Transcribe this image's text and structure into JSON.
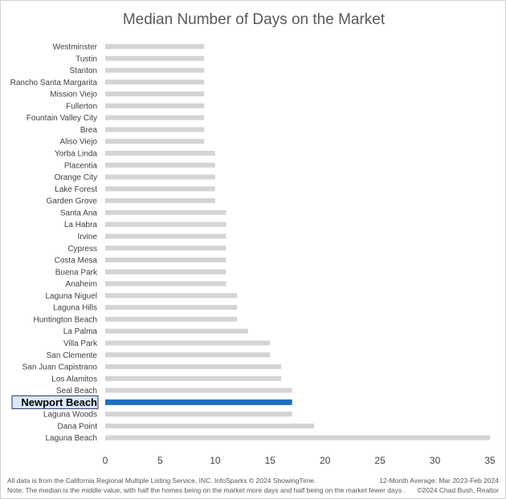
{
  "chart_data": {
    "type": "bar",
    "orientation": "horizontal",
    "title": "Median Number of Days on the Market",
    "xlabel": "",
    "ylabel": "",
    "xlim": [
      0,
      35
    ],
    "x_ticks": [
      0,
      5,
      10,
      15,
      20,
      25,
      30,
      35
    ],
    "grid": false,
    "highlight": "Newport Beach",
    "colors": {
      "bar": "#d4d4d4",
      "highlight": "#1f6fbf",
      "highlight_label_bg": "#dbe7f7",
      "text": "#404040",
      "title": "#595959"
    },
    "categories": [
      "Westminster",
      "Tustin",
      "Stanton",
      "Rancho Santa Margarita",
      "Mission Viejo",
      "Fullerton",
      "Fountain Valley City",
      "Brea",
      "Aliso Viejo",
      "Yorba Linda",
      "Placentia",
      "Orange City",
      "Lake Forest",
      "Garden Grove",
      "Santa Ana",
      "La Habra",
      "Irvine",
      "Cypress",
      "Costa Mesa",
      "Buena Park",
      "Anaheim",
      "Laguna Niguel",
      "Laguna Hills",
      "Huntington Beach",
      "La Palma",
      "Villa Park",
      "San Clemente",
      "San Juan Capistrano",
      "Los Alamitos",
      "Seal Beach",
      "Newport Beach",
      "Laguna Woods",
      "Dana Point",
      "Laguna Beach"
    ],
    "values": [
      9,
      9,
      9,
      9,
      9,
      9,
      9,
      9,
      9,
      10,
      10,
      10,
      10,
      10,
      11,
      11,
      11,
      11,
      11,
      11,
      11,
      12,
      12,
      12,
      13,
      15,
      15,
      16,
      16,
      17,
      17,
      17,
      19,
      35
    ]
  },
  "footer": {
    "source": "All data is from the California Regional Multiple Listing Service, INC. InfoSparks © 2024 ShowingTime.",
    "note": "Note: The median is the middle value, with half the homes being on the market more days and half being on the market fewer days .",
    "period": "12-Month Average: Mar 2023-Feb 2024",
    "credit": "©2024 Chad Bush, Realtor"
  }
}
